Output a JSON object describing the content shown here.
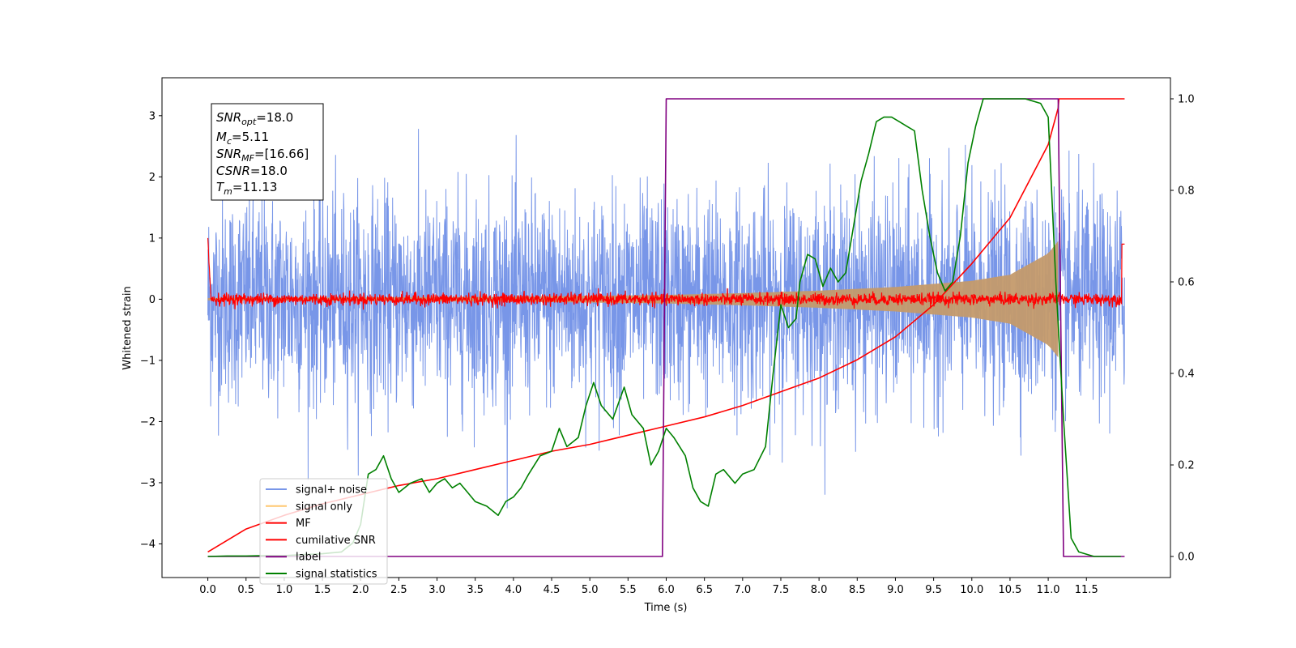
{
  "chart_data": {
    "type": "line",
    "xlabel": "Time (s)",
    "ylabel": "Whitened strain",
    "xlim": [
      -0.6,
      12.6
    ],
    "ylim": [
      -4.55,
      3.62
    ],
    "y2lim": [
      -0.046,
      1.046
    ],
    "xticks": [
      0.0,
      0.5,
      1.0,
      1.5,
      2.0,
      2.5,
      3.0,
      3.5,
      4.0,
      4.5,
      5.0,
      5.5,
      6.0,
      6.5,
      7.0,
      7.5,
      8.0,
      8.5,
      9.0,
      9.5,
      10.0,
      10.5,
      11.0,
      11.5
    ],
    "xtick_labels": [
      "0.0",
      "0.5",
      "1.0",
      "1.5",
      "2.0",
      "2.5",
      "3.0",
      "3.5",
      "4.0",
      "4.5",
      "5.0",
      "5.5",
      "6.0",
      "6.5",
      "7.0",
      "7.5",
      "8.0",
      "8.5",
      "9.0",
      "9.5",
      "10.0",
      "10.5",
      "11.0",
      "11.5"
    ],
    "yticks": [
      -4,
      -3,
      -2,
      -1,
      0,
      1,
      2,
      3
    ],
    "ytick_labels": [
      "−4",
      "−3",
      "−2",
      "−1",
      "0",
      "1",
      "2",
      "3"
    ],
    "y2ticks": [
      0.0,
      0.2,
      0.4,
      0.6,
      0.8,
      1.0
    ],
    "y2tick_labels": [
      "0.0",
      "0.2",
      "0.4",
      "0.6",
      "0.8",
      "1.0"
    ],
    "grid": false,
    "legend_position": "bottom-left",
    "colors": {
      "signal_noise": "#7896e8",
      "signal_only": "#c49a6c",
      "mf": "#ff0000",
      "csnr": "#ff0000",
      "label": "#800080",
      "statistics": "#008000"
    },
    "series": [
      {
        "name": "signal+ noise",
        "key": "signal_noise",
        "axis": "left",
        "style": "noise band",
        "t_range": [
          0.0,
          12.0
        ],
        "std_approx": 0.85,
        "extremes": [
          -4.17,
          3.27
        ]
      },
      {
        "name": "signal only",
        "key": "signal_only",
        "axis": "left",
        "style": "chirp envelope",
        "t_range": [
          0.0,
          11.13
        ],
        "envelope_t": [
          0.0,
          2.0,
          4.0,
          6.0,
          7.0,
          8.0,
          9.0,
          10.0,
          10.5,
          11.0,
          11.13
        ],
        "envelope_a": [
          0.02,
          0.03,
          0.04,
          0.07,
          0.1,
          0.14,
          0.2,
          0.3,
          0.4,
          0.75,
          0.95
        ]
      },
      {
        "name": "MF",
        "key": "mf",
        "axis": "left",
        "style": "noisy flat",
        "t_range": [
          0.0,
          12.0
        ],
        "level": 0.0,
        "spread": 0.05,
        "edge_values": [
          1.0,
          0.9
        ]
      },
      {
        "name": "cumilative SNR",
        "key": "csnr",
        "axis": "right",
        "x": [
          0.0,
          0.5,
          1.0,
          1.5,
          2.0,
          2.5,
          3.0,
          3.5,
          4.0,
          4.5,
          5.0,
          5.5,
          6.0,
          6.5,
          7.0,
          7.5,
          8.0,
          8.5,
          9.0,
          9.5,
          10.0,
          10.5,
          11.0,
          11.13,
          11.14,
          12.0
        ],
        "y": [
          0.01,
          0.06,
          0.09,
          0.115,
          0.135,
          0.155,
          0.17,
          0.19,
          0.21,
          0.23,
          0.245,
          0.265,
          0.285,
          0.305,
          0.33,
          0.36,
          0.39,
          0.43,
          0.48,
          0.55,
          0.64,
          0.74,
          0.9,
          0.98,
          1.0,
          1.0
        ]
      },
      {
        "name": "label",
        "key": "label",
        "axis": "right",
        "x": [
          0.0,
          5.95,
          5.95,
          6.0,
          11.13,
          11.13,
          11.2,
          12.0
        ],
        "y": [
          0.0,
          0.0,
          0.0,
          1.0,
          1.0,
          1.0,
          0.0,
          0.0
        ]
      },
      {
        "name": "signal statistics",
        "key": "statistics",
        "axis": "right",
        "x": [
          0.0,
          0.25,
          0.5,
          0.75,
          1.0,
          1.25,
          1.5,
          1.75,
          1.9,
          2.0,
          2.1,
          2.2,
          2.3,
          2.4,
          2.5,
          2.65,
          2.8,
          2.9,
          3.0,
          3.1,
          3.2,
          3.3,
          3.4,
          3.5,
          3.65,
          3.8,
          3.9,
          4.0,
          4.1,
          4.2,
          4.35,
          4.5,
          4.6,
          4.7,
          4.85,
          4.95,
          5.05,
          5.15,
          5.3,
          5.45,
          5.55,
          5.7,
          5.8,
          5.9,
          6.0,
          6.1,
          6.25,
          6.35,
          6.45,
          6.55,
          6.65,
          6.75,
          6.9,
          7.0,
          7.15,
          7.3,
          7.4,
          7.5,
          7.6,
          7.7,
          7.75,
          7.85,
          7.95,
          8.05,
          8.15,
          8.25,
          8.35,
          8.45,
          8.55,
          8.65,
          8.75,
          8.85,
          8.95,
          9.05,
          9.15,
          9.25,
          9.35,
          9.45,
          9.55,
          9.65,
          9.75,
          9.85,
          9.95,
          10.05,
          10.15,
          10.3,
          10.5,
          10.7,
          10.9,
          11.0,
          11.1,
          11.2,
          11.3,
          11.4,
          11.6,
          11.8,
          11.95
        ],
        "y": [
          0.0,
          0.001,
          0.001,
          0.002,
          0.002,
          0.004,
          0.006,
          0.01,
          0.03,
          0.07,
          0.18,
          0.19,
          0.22,
          0.17,
          0.14,
          0.16,
          0.17,
          0.14,
          0.16,
          0.17,
          0.15,
          0.16,
          0.14,
          0.12,
          0.11,
          0.09,
          0.12,
          0.13,
          0.15,
          0.18,
          0.22,
          0.23,
          0.28,
          0.24,
          0.26,
          0.33,
          0.38,
          0.33,
          0.3,
          0.37,
          0.31,
          0.28,
          0.2,
          0.23,
          0.28,
          0.26,
          0.22,
          0.15,
          0.12,
          0.11,
          0.18,
          0.19,
          0.16,
          0.18,
          0.19,
          0.24,
          0.4,
          0.55,
          0.5,
          0.52,
          0.6,
          0.66,
          0.65,
          0.59,
          0.63,
          0.6,
          0.62,
          0.72,
          0.82,
          0.88,
          0.95,
          0.96,
          0.96,
          0.95,
          0.94,
          0.93,
          0.8,
          0.7,
          0.62,
          0.58,
          0.6,
          0.7,
          0.86,
          0.94,
          1.0,
          1.0,
          1.0,
          1.0,
          0.99,
          0.96,
          0.6,
          0.3,
          0.04,
          0.01,
          0.0,
          0.0,
          0.0
        ]
      }
    ],
    "info_box": {
      "snr_opt": {
        "sym": "SNR",
        "sub": "opt",
        "value": "=18.0"
      },
      "mc": {
        "sym": "M",
        "sub": "c",
        "value": "=5.11"
      },
      "snr_mf": {
        "sym": "SNR",
        "sub": "MF",
        "value": "=[16.66]"
      },
      "csnr": {
        "sym": "CSNR",
        "sub": "",
        "value": "=18.0"
      },
      "tm": {
        "sym": "T",
        "sub": "m",
        "value": "=11.13"
      }
    }
  }
}
